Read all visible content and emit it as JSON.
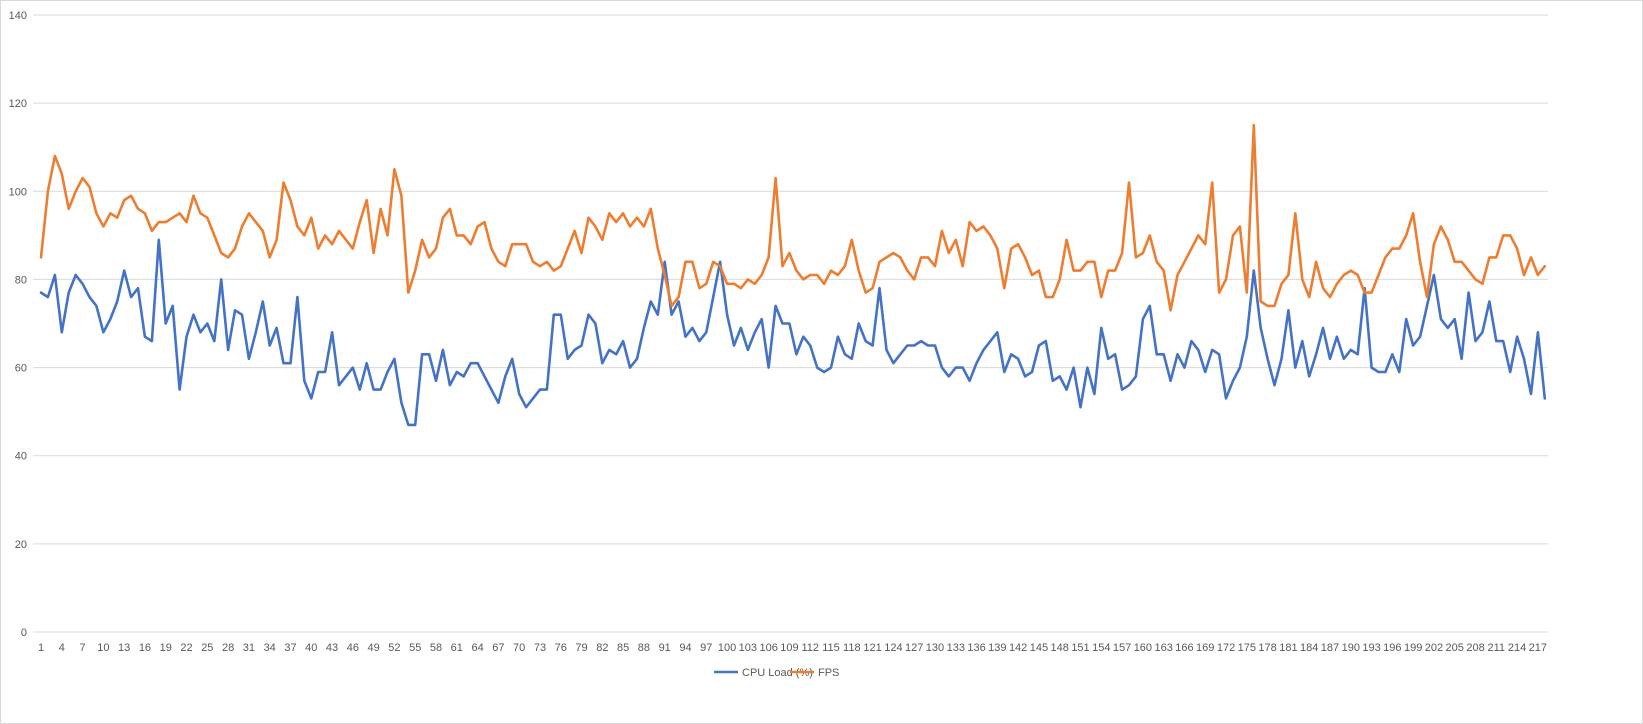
{
  "chart_data": {
    "type": "line",
    "title": "",
    "xlabel": "",
    "ylabel": "",
    "ylim": [
      0,
      140
    ],
    "y_ticks": [
      0,
      20,
      40,
      60,
      80,
      100,
      120,
      140
    ],
    "x_range": [
      1,
      218
    ],
    "x_tick_labels": [
      1,
      4,
      7,
      10,
      13,
      16,
      19,
      22,
      25,
      28,
      31,
      34,
      37,
      40,
      43,
      46,
      49,
      52,
      55,
      58,
      61,
      64,
      67,
      70,
      73,
      76,
      79,
      82,
      85,
      88,
      91,
      94,
      97,
      100,
      103,
      106,
      109,
      112,
      115,
      118,
      121,
      124,
      127,
      130,
      133,
      136,
      139,
      142,
      145,
      148,
      151,
      154,
      157,
      160,
      163,
      166,
      169,
      172,
      175,
      178,
      181,
      184,
      187,
      190,
      193,
      196,
      199,
      202,
      205,
      208,
      211,
      214,
      217
    ],
    "grid": true,
    "legend_position": "bottom",
    "series": [
      {
        "name": "CPU Load (%)",
        "color": "#4472C4",
        "values": [
          77,
          76,
          81,
          68,
          77,
          81,
          79,
          76,
          74,
          68,
          71,
          75,
          82,
          76,
          78,
          67,
          66,
          89,
          70,
          74,
          55,
          67,
          72,
          68,
          70,
          66,
          80,
          64,
          73,
          72,
          62,
          68,
          75,
          65,
          69,
          61,
          61,
          76,
          57,
          53,
          59,
          59,
          68,
          56,
          58,
          60,
          55,
          61,
          55,
          55,
          59,
          62,
          52,
          47,
          47,
          63,
          63,
          57,
          64,
          56,
          59,
          58,
          61,
          61,
          58,
          55,
          52,
          58,
          62,
          54,
          51,
          53,
          55,
          55,
          72,
          72,
          62,
          64,
          65,
          72,
          70,
          61,
          64,
          63,
          66,
          60,
          62,
          69,
          75,
          72,
          84,
          72,
          75,
          67,
          69,
          66,
          68,
          76,
          84,
          72,
          65,
          69,
          64,
          68,
          71,
          60,
          74,
          70,
          70,
          63,
          67,
          65,
          60,
          59,
          60,
          67,
          63,
          62,
          70,
          66,
          65,
          78,
          64,
          61,
          63,
          65,
          65,
          66,
          65,
          65,
          60,
          58,
          60,
          60,
          57,
          61,
          64,
          66,
          68,
          59,
          63,
          62,
          58,
          59,
          65,
          66,
          57,
          58,
          55,
          60,
          51,
          60,
          54,
          69,
          62,
          63,
          55,
          56,
          58,
          71,
          74,
          63,
          63,
          57,
          63,
          60,
          66,
          64,
          59,
          64,
          63,
          53,
          57,
          60,
          67,
          82,
          69,
          62,
          56,
          62,
          73,
          60,
          66,
          58,
          63,
          69,
          62,
          67,
          62,
          64,
          63,
          78,
          60,
          59,
          59,
          63,
          59,
          71,
          65,
          67,
          74,
          81,
          71,
          69,
          71,
          62,
          77,
          66,
          68,
          75,
          66,
          66,
          59,
          67,
          62,
          54,
          68,
          53
        ]
      },
      {
        "name": "FPS",
        "color": "#ED7D31",
        "values": [
          85,
          100,
          108,
          104,
          96,
          100,
          103,
          101,
          95,
          92,
          95,
          94,
          98,
          99,
          96,
          95,
          91,
          93,
          93,
          94,
          95,
          93,
          99,
          95,
          94,
          90,
          86,
          85,
          87,
          92,
          95,
          93,
          91,
          85,
          89,
          102,
          98,
          92,
          90,
          94,
          87,
          90,
          88,
          91,
          89,
          87,
          93,
          98,
          86,
          96,
          90,
          105,
          99,
          77,
          82,
          89,
          85,
          87,
          94,
          96,
          90,
          90,
          88,
          92,
          93,
          87,
          84,
          83,
          88,
          88,
          88,
          84,
          83,
          84,
          82,
          83,
          87,
          91,
          86,
          94,
          92,
          89,
          95,
          93,
          95,
          92,
          94,
          92,
          96,
          87,
          81,
          74,
          76,
          84,
          84,
          78,
          79,
          84,
          83,
          79,
          79,
          78,
          80,
          79,
          81,
          85,
          103,
          83,
          86,
          82,
          80,
          81,
          81,
          79,
          82,
          81,
          83,
          89,
          82,
          77,
          78,
          84,
          85,
          86,
          85,
          82,
          80,
          85,
          85,
          83,
          91,
          86,
          89,
          83,
          93,
          91,
          92,
          90,
          87,
          78,
          87,
          88,
          85,
          81,
          82,
          76,
          76,
          80,
          89,
          82,
          82,
          84,
          84,
          76,
          82,
          82,
          86,
          102,
          85,
          86,
          90,
          84,
          82,
          73,
          81,
          84,
          87,
          90,
          88,
          102,
          77,
          80,
          90,
          92,
          77,
          115,
          75,
          74,
          74,
          79,
          81,
          95,
          80,
          76,
          84,
          78,
          76,
          79,
          81,
          82,
          81,
          77,
          77,
          81,
          85,
          87,
          87,
          90,
          95,
          84,
          76,
          88,
          92,
          89,
          84,
          84,
          82,
          80,
          79,
          85,
          85,
          90,
          90,
          87,
          81,
          85,
          81,
          83
        ]
      }
    ]
  }
}
